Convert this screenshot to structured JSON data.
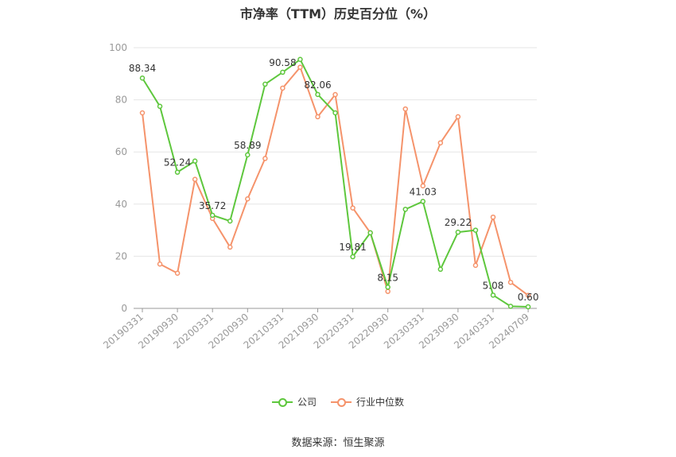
{
  "title": "市净率（TTM）历史百分位（%）",
  "source": "数据来源：恒生聚源",
  "colors": {
    "company": "#5ec73d",
    "industry": "#f5936b",
    "grid": "#e6e6e6",
    "axis": "#999999"
  },
  "chart_data": {
    "type": "line",
    "title": "市净率（TTM）历史百分位（%）",
    "ylim": [
      0,
      100
    ],
    "yticks": [
      0,
      20,
      40,
      60,
      80,
      100
    ],
    "xtick_labels": [
      "20190331",
      "20190930",
      "20200331",
      "20200930",
      "20210331",
      "20210930",
      "20220331",
      "20220930",
      "20230331",
      "20230930",
      "20240331",
      "20240709"
    ],
    "x": [
      "20190331",
      "20190630",
      "20190930",
      "20191231",
      "20200331",
      "20200630",
      "20200930",
      "20201231",
      "20210331",
      "20210630",
      "20210930",
      "20211231",
      "20220331",
      "20220630",
      "20220930",
      "20221231",
      "20230331",
      "20230630",
      "20230930",
      "20231231",
      "20240331",
      "20240630",
      "20240709"
    ],
    "series": [
      {
        "name": "公司",
        "values": [
          88.34,
          77.5,
          52.24,
          56.5,
          35.72,
          33.5,
          58.89,
          86.0,
          90.58,
          95.5,
          82.06,
          75.0,
          19.81,
          29.0,
          8.15,
          38.0,
          41.03,
          15.0,
          29.22,
          30.0,
          5.08,
          0.8,
          0.6
        ],
        "labels": [
          "88.34",
          "",
          "52.24",
          "",
          "35.72",
          "",
          "58.89",
          "",
          "90.58",
          "",
          "82.06",
          "",
          "19.81",
          "",
          "8.15",
          "",
          "41.03",
          "",
          "29.22",
          "",
          "5.08",
          "",
          "0.60"
        ]
      },
      {
        "name": "行业中位数",
        "values": [
          75.0,
          17.0,
          13.5,
          49.5,
          34.5,
          23.5,
          42.0,
          57.5,
          84.5,
          92.5,
          73.5,
          82.0,
          38.5,
          29.0,
          6.5,
          76.5,
          47.0,
          63.5,
          73.5,
          16.5,
          35.0,
          10.0,
          5.0
        ]
      }
    ]
  }
}
